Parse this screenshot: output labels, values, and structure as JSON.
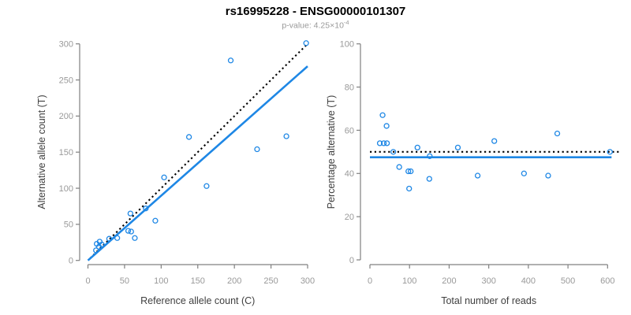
{
  "header": {
    "title": "rs16995228 - ENSG00000101307",
    "p_label": "p-value: 4.25×10",
    "p_exponent": "-4"
  },
  "colors": {
    "accent_blue": "#1E87E5",
    "dotted_black": "#000000",
    "axis_gray": "#808080",
    "tick_label_gray": "#999999",
    "axis_title_gray": "#404040"
  },
  "chart_data": [
    {
      "name": "allele-counts",
      "type": "scatter",
      "xlabel": "Reference allele count (C)",
      "ylabel": "Alternative allele count (T)",
      "xlim": [
        0,
        300
      ],
      "ylim": [
        0,
        300
      ],
      "xticks": [
        0,
        50,
        100,
        150,
        200,
        250,
        300
      ],
      "yticks": [
        0,
        50,
        100,
        150,
        200,
        250,
        300
      ],
      "grid": false,
      "legend": "none",
      "points": [
        [
          11,
          14
        ],
        [
          12,
          23
        ],
        [
          15,
          19
        ],
        [
          16,
          26
        ],
        [
          19,
          22
        ],
        [
          29,
          30
        ],
        [
          40,
          31
        ],
        [
          55,
          41
        ],
        [
          59,
          40
        ],
        [
          64,
          31
        ],
        [
          58,
          65
        ],
        [
          79,
          72
        ],
        [
          92,
          55
        ],
        [
          104,
          115
        ],
        [
          138,
          171
        ],
        [
          162,
          103
        ],
        [
          195,
          277
        ],
        [
          231,
          154
        ],
        [
          271,
          172
        ],
        [
          298,
          301
        ]
      ],
      "lines": [
        {
          "name": "identity-line",
          "style": "dotted",
          "color": "#000000",
          "from": [
            3,
            3
          ],
          "to": [
            300,
            300
          ]
        },
        {
          "name": "fit-line",
          "style": "solid",
          "color": "#1E87E5",
          "from": [
            0,
            0
          ],
          "to": [
            300,
            269
          ]
        }
      ]
    },
    {
      "name": "percentage-alternative",
      "type": "scatter",
      "xlabel": "Total number of reads",
      "ylabel": "Percentage alternative (T)",
      "xlim": [
        0,
        600
      ],
      "ylim": [
        0,
        100
      ],
      "xticks": [
        0,
        100,
        200,
        300,
        400,
        500,
        600
      ],
      "yticks": [
        0,
        20,
        40,
        60,
        80,
        100
      ],
      "grid": false,
      "legend": "none",
      "points": [
        [
          25,
          54
        ],
        [
          32,
          67
        ],
        [
          35,
          54
        ],
        [
          42,
          62
        ],
        [
          43,
          54
        ],
        [
          59,
          50
        ],
        [
          74,
          43
        ],
        [
          97,
          41
        ],
        [
          99,
          33
        ],
        [
          103,
          41
        ],
        [
          120,
          52
        ],
        [
          150,
          37.5
        ],
        [
          151,
          48
        ],
        [
          222,
          52
        ],
        [
          272,
          39
        ],
        [
          314,
          55
        ],
        [
          389,
          40
        ],
        [
          450,
          39
        ],
        [
          473,
          58.5
        ],
        [
          606,
          50
        ]
      ],
      "lines": [
        {
          "name": "expected-line",
          "style": "dotted",
          "color": "#000000",
          "from": [
            0,
            50
          ],
          "to": [
            635,
            50
          ]
        },
        {
          "name": "fit-line",
          "style": "solid",
          "color": "#1E87E5",
          "from": [
            0,
            47.5
          ],
          "to": [
            610,
            47.5
          ]
        }
      ]
    }
  ]
}
